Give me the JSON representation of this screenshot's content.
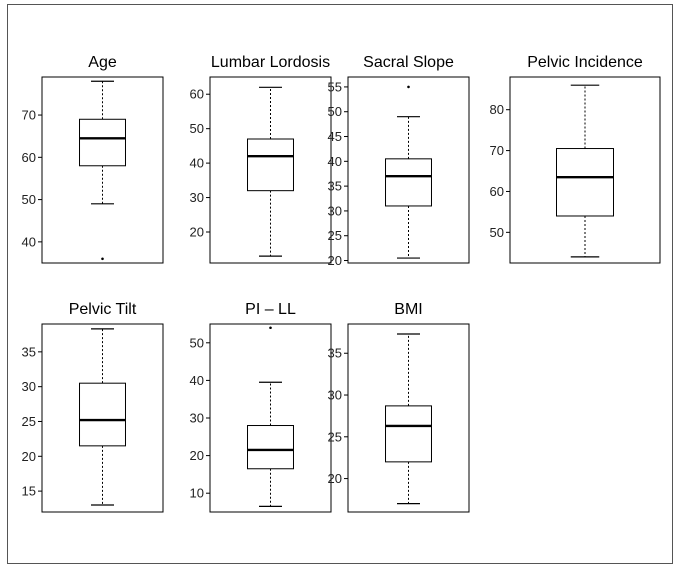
{
  "chart_data": [
    {
      "type": "boxplot",
      "title": "Age",
      "ylim": [
        35,
        79
      ],
      "ticks": [
        40,
        50,
        60,
        70
      ],
      "stats": {
        "whisker_low": 49,
        "q1": 58,
        "median": 64.5,
        "q3": 69,
        "whisker_high": 78
      },
      "outliers": [
        36
      ]
    },
    {
      "type": "boxplot",
      "title": "Lumbar Lordosis",
      "ylim": [
        11,
        65
      ],
      "ticks": [
        20,
        30,
        40,
        50,
        60
      ],
      "stats": {
        "whisker_low": 13,
        "q1": 32,
        "median": 42,
        "q3": 47,
        "whisker_high": 62
      },
      "outliers": []
    },
    {
      "type": "boxplot",
      "title": "Sacral Slope",
      "ylim": [
        19.5,
        57
      ],
      "ticks": [
        20,
        25,
        30,
        35,
        40,
        45,
        50,
        55
      ],
      "stats": {
        "whisker_low": 20.5,
        "q1": 31,
        "median": 37,
        "q3": 40.5,
        "whisker_high": 49
      },
      "outliers": [
        55
      ]
    },
    {
      "type": "boxplot",
      "title": "Pelvic Incidence",
      "ylim": [
        42.5,
        88
      ],
      "ticks": [
        50,
        60,
        70,
        80
      ],
      "stats": {
        "whisker_low": 44,
        "q1": 54,
        "median": 63.5,
        "q3": 70.5,
        "whisker_high": 86
      },
      "outliers": []
    },
    {
      "type": "boxplot",
      "title": "Pelvic Tilt",
      "ylim": [
        12,
        39
      ],
      "ticks": [
        15,
        20,
        25,
        30,
        35
      ],
      "stats": {
        "whisker_low": 13,
        "q1": 21.5,
        "median": 25.2,
        "q3": 30.5,
        "whisker_high": 38.3
      },
      "outliers": []
    },
    {
      "type": "boxplot",
      "title": "PI – LL",
      "ylim": [
        5,
        55
      ],
      "ticks": [
        10,
        20,
        30,
        40,
        50
      ],
      "stats": {
        "whisker_low": 6.5,
        "q1": 16.5,
        "median": 21.5,
        "q3": 28,
        "whisker_high": 39.5
      },
      "outliers": [
        54
      ]
    },
    {
      "type": "boxplot",
      "title": "BMI",
      "ylim": [
        16,
        38.5
      ],
      "ticks": [
        20,
        25,
        30,
        35
      ],
      "stats": {
        "whisker_low": 17,
        "q1": 22,
        "median": 26.3,
        "q3": 28.7,
        "whisker_high": 37.3
      },
      "outliers": []
    }
  ]
}
